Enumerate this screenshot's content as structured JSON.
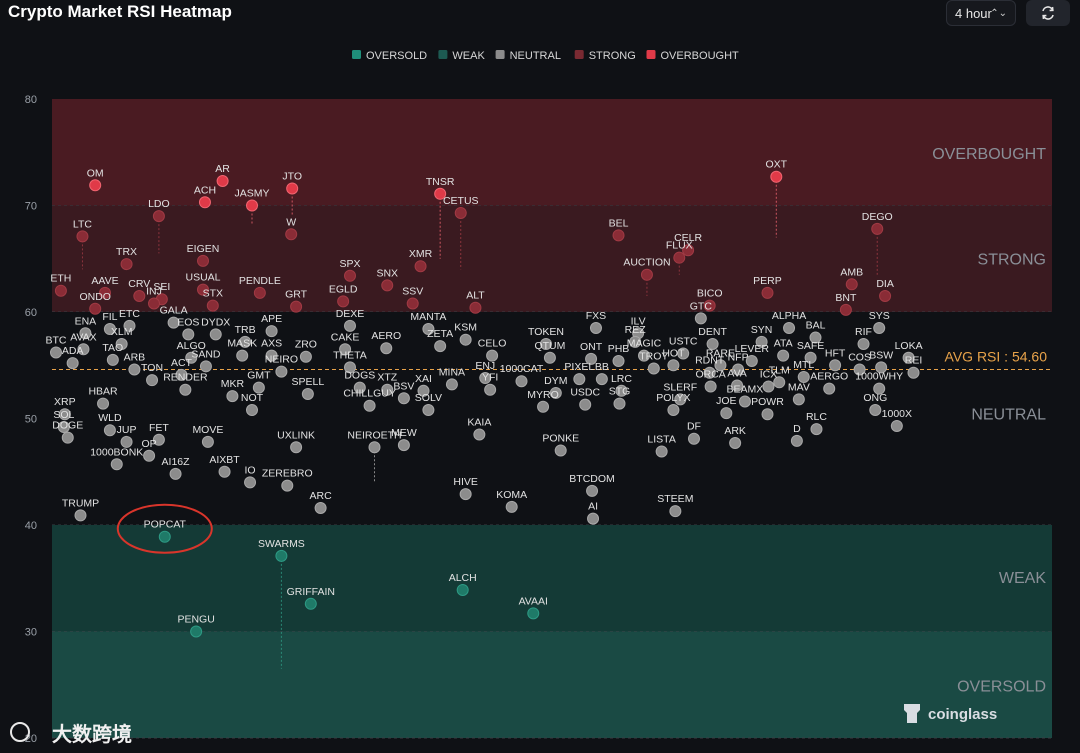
{
  "header": {
    "title": "Crypto Market RSI Heatmap",
    "timeframe": "4 hour",
    "timeframe_chevron": "⌃⌄"
  },
  "legend": [
    {
      "label": "OVERSOLD",
      "color": "#1f8f7a"
    },
    {
      "label": "WEAK",
      "color": "#1d5a52"
    },
    {
      "label": "NEUTRAL",
      "color": "#8c8c8c"
    },
    {
      "label": "STRONG",
      "color": "#7a2a32"
    },
    {
      "label": "OVERBOUGHT",
      "color": "#e03a48"
    }
  ],
  "watermark": "coinglass",
  "watermark2": "大数跨境",
  "chart_data": {
    "type": "scatter",
    "title": "Crypto Market RSI Heatmap",
    "ylim": [
      20,
      80
    ],
    "yticks": [
      30,
      40,
      50,
      60,
      70,
      80
    ],
    "ytick_bottom_label": "20",
    "grid": false,
    "avg_rsi": 54.6,
    "avg_label": "AVG RSI : 54.60",
    "zones": [
      {
        "label": "OVERBOUGHT",
        "from": 70,
        "to": 80,
        "color": "#4a1b22"
      },
      {
        "label": "STRONG",
        "from": 60,
        "to": 70,
        "color": "#3a1a20"
      },
      {
        "label": "NEUTRAL",
        "from": 40,
        "to": 60,
        "color": "#0f1115"
      },
      {
        "label": "WEAK",
        "from": 30,
        "to": 40,
        "color": "#143a36"
      },
      {
        "label": "OVERSOLD",
        "from": 20,
        "to": 30,
        "color": "#1a4a44"
      }
    ],
    "highlight": "POPCAT",
    "points": [
      {
        "label": "OM",
        "x": 0.04,
        "y": 71.9,
        "prev": 71.9
      },
      {
        "label": "AR",
        "x": 0.17,
        "y": 72.3,
        "prev": 72.3
      },
      {
        "label": "ACH",
        "x": 0.152,
        "y": 70.3,
        "prev": 70.3
      },
      {
        "label": "JASMY",
        "x": 0.2,
        "y": 70.0,
        "prev": 68.2
      },
      {
        "label": "JTO",
        "x": 0.241,
        "y": 71.6,
        "prev": 69.0
      },
      {
        "label": "W",
        "x": 0.24,
        "y": 67.3,
        "prev": 67.3
      },
      {
        "label": "LDO",
        "x": 0.105,
        "y": 69.0,
        "prev": 65.5
      },
      {
        "label": "LTC",
        "x": 0.027,
        "y": 67.1,
        "prev": 64.0
      },
      {
        "label": "TRX",
        "x": 0.072,
        "y": 64.5,
        "prev": 64.5
      },
      {
        "label": "EIGEN",
        "x": 0.15,
        "y": 64.8,
        "prev": 64.8
      },
      {
        "label": "USUAL",
        "x": 0.15,
        "y": 62.1,
        "prev": 62.1
      },
      {
        "label": "SPX",
        "x": 0.3,
        "y": 63.4,
        "prev": 63.4
      },
      {
        "label": "TNSR",
        "x": 0.392,
        "y": 71.1,
        "prev": 65.0
      },
      {
        "label": "CETUS",
        "x": 0.413,
        "y": 69.3,
        "prev": 64.0
      },
      {
        "label": "XMR",
        "x": 0.372,
        "y": 64.3,
        "prev": 64.3
      },
      {
        "label": "SNX",
        "x": 0.338,
        "y": 62.5,
        "prev": 62.5
      },
      {
        "label": "BEL",
        "x": 0.574,
        "y": 67.2,
        "prev": 67.2
      },
      {
        "label": "CELR",
        "x": 0.645,
        "y": 65.8,
        "prev": 65.8
      },
      {
        "label": "FLUX",
        "x": 0.636,
        "y": 65.1,
        "prev": 63.5
      },
      {
        "label": "AUCTION",
        "x": 0.603,
        "y": 63.5,
        "prev": 61.5
      },
      {
        "label": "OXT",
        "x": 0.735,
        "y": 72.7,
        "prev": 67.0
      },
      {
        "label": "DEGO",
        "x": 0.838,
        "y": 67.8,
        "prev": 63.5
      },
      {
        "label": "AMB",
        "x": 0.812,
        "y": 62.6,
        "prev": 62.6
      },
      {
        "label": "DIA",
        "x": 0.846,
        "y": 61.5,
        "prev": 61.5
      },
      {
        "label": "PERP",
        "x": 0.726,
        "y": 61.8,
        "prev": 61.8
      },
      {
        "label": "ETH",
        "x": 0.005,
        "y": 62.0,
        "prev": 62.0
      },
      {
        "label": "AAVE",
        "x": 0.05,
        "y": 61.8,
        "prev": 61.8
      },
      {
        "label": "CRV",
        "x": 0.085,
        "y": 61.5,
        "prev": 61.5
      },
      {
        "label": "SEI",
        "x": 0.108,
        "y": 61.2,
        "prev": 61.2
      },
      {
        "label": "PENDLE",
        "x": 0.208,
        "y": 61.8,
        "prev": 61.8
      },
      {
        "label": "EGLD",
        "x": 0.293,
        "y": 61.0,
        "prev": 61.0
      },
      {
        "label": "SSV",
        "x": 0.364,
        "y": 60.8,
        "prev": 60.8
      },
      {
        "label": "ONDO",
        "x": 0.04,
        "y": 60.3,
        "prev": 60.3
      },
      {
        "label": "INJ",
        "x": 0.1,
        "y": 60.8,
        "prev": 60.8
      },
      {
        "label": "STX",
        "x": 0.16,
        "y": 60.6,
        "prev": 60.6
      },
      {
        "label": "GRT",
        "x": 0.245,
        "y": 60.5,
        "prev": 60.5
      },
      {
        "label": "ALT",
        "x": 0.428,
        "y": 60.4,
        "prev": 60.4
      },
      {
        "label": "BICO",
        "x": 0.667,
        "y": 60.6,
        "prev": 60.6
      },
      {
        "label": "BNT",
        "x": 0.806,
        "y": 60.2,
        "prev": 60.2
      },
      {
        "label": "TRUMP",
        "x": 0.025,
        "y": 40.9,
        "prev": 40.9
      },
      {
        "label": "POPCAT",
        "x": 0.111,
        "y": 38.9,
        "prev": 38.9
      },
      {
        "label": "PENGU",
        "x": 0.143,
        "y": 30.0,
        "prev": 30.0
      },
      {
        "label": "SWARMS",
        "x": 0.23,
        "y": 37.1,
        "prev": 26.5
      },
      {
        "label": "GRIFFAIN",
        "x": 0.26,
        "y": 32.6,
        "prev": 32.6
      },
      {
        "label": "ALCH",
        "x": 0.415,
        "y": 33.9,
        "prev": 33.9
      },
      {
        "label": "AVAAI",
        "x": 0.487,
        "y": 31.7,
        "prev": 31.7
      },
      {
        "label": "ARC",
        "x": 0.27,
        "y": 41.6,
        "prev": 41.6
      },
      {
        "label": "HIVE",
        "x": 0.418,
        "y": 42.9,
        "prev": 42.9
      },
      {
        "label": "KOMA",
        "x": 0.465,
        "y": 41.7,
        "prev": 41.7
      },
      {
        "label": "BTCDOM",
        "x": 0.547,
        "y": 43.2,
        "prev": 43.2
      },
      {
        "label": "AI",
        "x": 0.548,
        "y": 40.6,
        "prev": 40.6
      },
      {
        "label": "STEEM",
        "x": 0.632,
        "y": 41.3,
        "prev": 41.3
      },
      {
        "label": "ZEREBRO",
        "x": 0.236,
        "y": 43.7,
        "prev": 43.7
      },
      {
        "label": "IO",
        "x": 0.198,
        "y": 44.0,
        "prev": 44.0
      },
      {
        "label": "AIXBT",
        "x": 0.172,
        "y": 45.0,
        "prev": 45.0
      },
      {
        "label": "AI16Z",
        "x": 0.122,
        "y": 44.8,
        "prev": 44.8
      },
      {
        "label": "1000BONK",
        "x": 0.062,
        "y": 45.7,
        "prev": 45.7
      },
      {
        "label": "OP",
        "x": 0.095,
        "y": 46.5,
        "prev": 46.5
      },
      {
        "label": "JUP",
        "x": 0.072,
        "y": 47.8,
        "prev": 47.8
      },
      {
        "label": "WLD",
        "x": 0.055,
        "y": 48.9,
        "prev": 48.9
      },
      {
        "label": "DOGE",
        "x": 0.012,
        "y": 48.2,
        "prev": 48.2
      },
      {
        "label": "SOL",
        "x": 0.008,
        "y": 49.2,
        "prev": 49.2
      },
      {
        "label": "XRP",
        "x": 0.009,
        "y": 50.4,
        "prev": 50.4
      },
      {
        "label": "HBAR",
        "x": 0.048,
        "y": 51.4,
        "prev": 51.4
      },
      {
        "label": "FET",
        "x": 0.105,
        "y": 48.0,
        "prev": 48.0
      },
      {
        "label": "MOVE",
        "x": 0.155,
        "y": 47.8,
        "prev": 47.8
      },
      {
        "label": "UXLINK",
        "x": 0.245,
        "y": 47.3,
        "prev": 47.3
      },
      {
        "label": "NEIROETH",
        "x": 0.325,
        "y": 47.3,
        "prev": 44.0
      },
      {
        "label": "MEW",
        "x": 0.355,
        "y": 47.5,
        "prev": 47.5
      },
      {
        "label": "KAIA",
        "x": 0.432,
        "y": 48.5,
        "prev": 48.5
      },
      {
        "label": "PONKE",
        "x": 0.515,
        "y": 47.0,
        "prev": 47.0
      },
      {
        "label": "LISTA",
        "x": 0.618,
        "y": 46.9,
        "prev": 46.9
      },
      {
        "label": "DF",
        "x": 0.651,
        "y": 48.1,
        "prev": 48.1
      },
      {
        "label": "ARK",
        "x": 0.693,
        "y": 47.7,
        "prev": 47.7
      },
      {
        "label": "D",
        "x": 0.756,
        "y": 47.9,
        "prev": 47.9
      },
      {
        "label": "RLC",
        "x": 0.776,
        "y": 49.0,
        "prev": 49.0
      },
      {
        "label": "1000X",
        "x": 0.858,
        "y": 49.3,
        "prev": 49.3
      },
      {
        "label": "ONG",
        "x": 0.836,
        "y": 50.8,
        "prev": 50.8
      },
      {
        "label": "RDNT",
        "x": 0.667,
        "y": 54.3,
        "prev": 54.3
      },
      {
        "label": "TOKEN",
        "x": 0.5,
        "y": 57.0,
        "prev": 57.0
      },
      {
        "label": "FXS",
        "x": 0.551,
        "y": 58.5,
        "prev": 58.5
      },
      {
        "label": "ILV",
        "x": 0.594,
        "y": 58.0,
        "prev": 58.0
      },
      {
        "label": "REZ",
        "x": 0.591,
        "y": 57.2,
        "prev": 57.2
      },
      {
        "label": "MAGIC",
        "x": 0.6,
        "y": 55.9,
        "prev": 55.9
      },
      {
        "label": "USTC",
        "x": 0.64,
        "y": 56.1,
        "prev": 56.1
      },
      {
        "label": "DENT",
        "x": 0.67,
        "y": 57.0,
        "prev": 57.0
      },
      {
        "label": "GTC",
        "x": 0.658,
        "y": 59.4,
        "prev": 59.4
      },
      {
        "label": "SYN",
        "x": 0.72,
        "y": 57.2,
        "prev": 57.2
      },
      {
        "label": "ALPHA",
        "x": 0.748,
        "y": 58.5,
        "prev": 58.5
      },
      {
        "label": "BAL",
        "x": 0.775,
        "y": 57.6,
        "prev": 57.6
      },
      {
        "label": "SYS",
        "x": 0.84,
        "y": 58.5,
        "prev": 58.5
      },
      {
        "label": "RIF",
        "x": 0.824,
        "y": 57.0,
        "prev": 57.0
      },
      {
        "label": "LOKA",
        "x": 0.87,
        "y": 55.7,
        "prev": 55.7
      },
      {
        "label": "BSW",
        "x": 0.842,
        "y": 54.8,
        "prev": 54.8
      },
      {
        "label": "REI",
        "x": 0.875,
        "y": 54.3,
        "prev": 54.3
      },
      {
        "label": "COS",
        "x": 0.82,
        "y": 54.6,
        "prev": 54.6
      },
      {
        "label": "HFT",
        "x": 0.795,
        "y": 55.0,
        "prev": 55.0
      },
      {
        "label": "SAFE",
        "x": 0.77,
        "y": 55.7,
        "prev": 55.7
      },
      {
        "label": "ATA",
        "x": 0.742,
        "y": 55.9,
        "prev": 55.9
      },
      {
        "label": "LEVER",
        "x": 0.71,
        "y": 55.4,
        "prev": 55.4
      },
      {
        "label": "NFP",
        "x": 0.696,
        "y": 54.6,
        "prev": 54.6
      },
      {
        "label": "RARE",
        "x": 0.678,
        "y": 55.0,
        "prev": 55.0
      },
      {
        "label": "HOT",
        "x": 0.63,
        "y": 55.0,
        "prev": 55.0
      },
      {
        "label": "PHB",
        "x": 0.574,
        "y": 55.4,
        "prev": 55.4
      },
      {
        "label": "TROY",
        "x": 0.61,
        "y": 54.7,
        "prev": 54.7
      },
      {
        "label": "ORCA",
        "x": 0.668,
        "y": 53.0,
        "prev": 53.0
      },
      {
        "label": "AVA",
        "x": 0.695,
        "y": 53.1,
        "prev": 53.1
      },
      {
        "label": "TLM",
        "x": 0.738,
        "y": 53.4,
        "prev": 53.4
      },
      {
        "label": "MTL",
        "x": 0.763,
        "y": 53.9,
        "prev": 53.9
      },
      {
        "label": "ICX",
        "x": 0.727,
        "y": 53.0,
        "prev": 53.0
      },
      {
        "label": "1000WHY",
        "x": 0.84,
        "y": 52.8,
        "prev": 52.8
      },
      {
        "label": "AERGO",
        "x": 0.789,
        "y": 52.8,
        "prev": 52.8
      },
      {
        "label": "MAV",
        "x": 0.758,
        "y": 51.8,
        "prev": 51.8
      },
      {
        "label": "POWR",
        "x": 0.726,
        "y": 50.4,
        "prev": 50.4
      },
      {
        "label": "BEAMX",
        "x": 0.703,
        "y": 51.6,
        "prev": 51.6
      },
      {
        "label": "JOE",
        "x": 0.684,
        "y": 50.5,
        "prev": 50.5
      },
      {
        "label": "SLERF",
        "x": 0.637,
        "y": 51.8,
        "prev": 51.8
      },
      {
        "label": "POLYX",
        "x": 0.63,
        "y": 50.8,
        "prev": 50.8
      },
      {
        "label": "STG",
        "x": 0.575,
        "y": 51.4,
        "prev": 51.4
      },
      {
        "label": "LRC",
        "x": 0.577,
        "y": 52.6,
        "prev": 52.6
      },
      {
        "label": "BB",
        "x": 0.557,
        "y": 53.7,
        "prev": 53.7
      },
      {
        "label": "ONT",
        "x": 0.546,
        "y": 55.6,
        "prev": 55.6
      },
      {
        "label": "PIXEL",
        "x": 0.534,
        "y": 53.7,
        "prev": 53.7
      },
      {
        "label": "QTUM",
        "x": 0.504,
        "y": 55.7,
        "prev": 55.7
      },
      {
        "label": "1000CAT",
        "x": 0.475,
        "y": 53.5,
        "prev": 53.5
      },
      {
        "label": "DYM",
        "x": 0.51,
        "y": 52.4,
        "prev": 52.4
      },
      {
        "label": "MYRO",
        "x": 0.497,
        "y": 51.1,
        "prev": 51.1
      },
      {
        "label": "USDC",
        "x": 0.54,
        "y": 51.3,
        "prev": 51.3
      },
      {
        "label": "ENJ",
        "x": 0.438,
        "y": 53.8,
        "prev": 53.8
      },
      {
        "label": "YFI",
        "x": 0.443,
        "y": 52.7,
        "prev": 52.7
      },
      {
        "label": "CELO",
        "x": 0.445,
        "y": 55.9,
        "prev": 55.9
      },
      {
        "label": "KSM",
        "x": 0.418,
        "y": 57.4,
        "prev": 57.4
      },
      {
        "label": "ZETA",
        "x": 0.392,
        "y": 56.8,
        "prev": 56.8
      },
      {
        "label": "MANTA",
        "x": 0.38,
        "y": 58.4,
        "prev": 58.4
      },
      {
        "label": "AERO",
        "x": 0.337,
        "y": 56.6,
        "prev": 56.6
      },
      {
        "label": "MINA",
        "x": 0.404,
        "y": 53.2,
        "prev": 53.2
      },
      {
        "label": "XAI",
        "x": 0.375,
        "y": 52.6,
        "prev": 52.6
      },
      {
        "label": "SOLV",
        "x": 0.38,
        "y": 50.8,
        "prev": 50.8
      },
      {
        "label": "BSV",
        "x": 0.355,
        "y": 51.9,
        "prev": 51.9
      },
      {
        "label": "XTZ",
        "x": 0.338,
        "y": 52.7,
        "prev": 52.7
      },
      {
        "label": "DOGS",
        "x": 0.31,
        "y": 52.9,
        "prev": 52.9
      },
      {
        "label": "CHILLGUY",
        "x": 0.32,
        "y": 51.2,
        "prev": 51.2
      },
      {
        "label": "THETA",
        "x": 0.3,
        "y": 54.8,
        "prev": 54.8
      },
      {
        "label": "CAKE",
        "x": 0.295,
        "y": 56.5,
        "prev": 56.5
      },
      {
        "label": "DEXE",
        "x": 0.3,
        "y": 58.7,
        "prev": 58.7
      },
      {
        "label": "SPELL",
        "x": 0.257,
        "y": 52.3,
        "prev": 52.3
      },
      {
        "label": "ZRO",
        "x": 0.255,
        "y": 55.8,
        "prev": 55.8
      },
      {
        "label": "NEIRO",
        "x": 0.23,
        "y": 54.4,
        "prev": 54.4
      },
      {
        "label": "AXS",
        "x": 0.22,
        "y": 55.9,
        "prev": 55.9
      },
      {
        "label": "APE",
        "x": 0.22,
        "y": 58.2,
        "prev": 58.2
      },
      {
        "label": "TRB",
        "x": 0.193,
        "y": 57.2,
        "prev": 57.2
      },
      {
        "label": "MASK",
        "x": 0.19,
        "y": 55.9,
        "prev": 55.9
      },
      {
        "label": "GMT",
        "x": 0.207,
        "y": 52.9,
        "prev": 52.9
      },
      {
        "label": "MKR",
        "x": 0.18,
        "y": 52.1,
        "prev": 52.1
      },
      {
        "label": "NOT",
        "x": 0.2,
        "y": 50.8,
        "prev": 50.8
      },
      {
        "label": "DYDX",
        "x": 0.163,
        "y": 57.9,
        "prev": 57.9
      },
      {
        "label": "GALA",
        "x": 0.12,
        "y": 59.0,
        "prev": 59.0
      },
      {
        "label": "EOS",
        "x": 0.135,
        "y": 57.9,
        "prev": 57.9
      },
      {
        "label": "ALGO",
        "x": 0.138,
        "y": 55.7,
        "prev": 55.7
      },
      {
        "label": "SAND",
        "x": 0.153,
        "y": 54.9,
        "prev": 54.9
      },
      {
        "label": "ACT",
        "x": 0.128,
        "y": 54.1,
        "prev": 54.1
      },
      {
        "label": "RENDER",
        "x": 0.132,
        "y": 52.7,
        "prev": 52.7
      },
      {
        "label": "TON",
        "x": 0.098,
        "y": 53.6,
        "prev": 53.6
      },
      {
        "label": "ARB",
        "x": 0.08,
        "y": 54.6,
        "prev": 54.6
      },
      {
        "label": "TAO",
        "x": 0.058,
        "y": 55.5,
        "prev": 55.5
      },
      {
        "label": "XLM",
        "x": 0.067,
        "y": 57.0,
        "prev": 57.0
      },
      {
        "label": "ETC",
        "x": 0.075,
        "y": 58.7,
        "prev": 58.7
      },
      {
        "label": "FIL",
        "x": 0.055,
        "y": 58.4,
        "prev": 58.4
      },
      {
        "label": "ENA",
        "x": 0.03,
        "y": 58.0,
        "prev": 58.0
      },
      {
        "label": "AVAX",
        "x": 0.028,
        "y": 56.5,
        "prev": 56.5
      },
      {
        "label": "BTC",
        "x": 0.0,
        "y": 56.2,
        "prev": 56.2
      },
      {
        "label": "ADA",
        "x": 0.017,
        "y": 55.2,
        "prev": 55.2
      }
    ]
  }
}
